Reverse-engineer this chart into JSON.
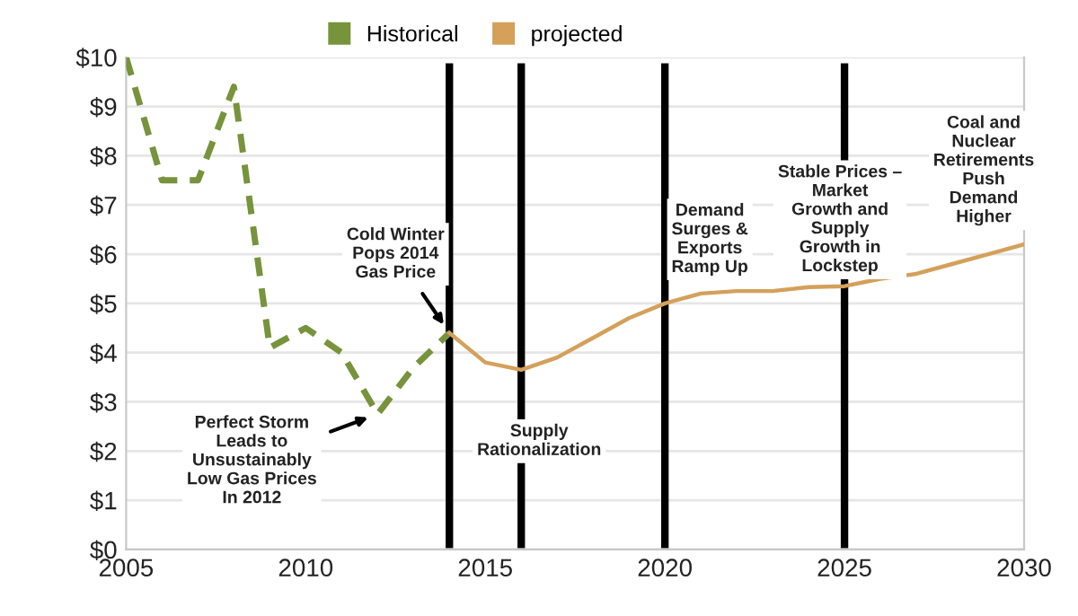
{
  "chart_data": {
    "type": "line",
    "x": [
      2005,
      2006,
      2007,
      2008,
      2009,
      2010,
      2011,
      2012,
      2013,
      2014,
      2015,
      2016,
      2017,
      2018,
      2019,
      2020,
      2021,
      2022,
      2023,
      2024,
      2025,
      2026,
      2027,
      2028,
      2029,
      2030
    ],
    "series": [
      {
        "name": "Historical",
        "color": "#77933c",
        "line_style": "dashed",
        "values": [
          10,
          7.5,
          7.5,
          9.4,
          4.1,
          4.5,
          4.0,
          2.75,
          3.7,
          4.4,
          null,
          null,
          null,
          null,
          null,
          null,
          null,
          null,
          null,
          null,
          null,
          null,
          null,
          null,
          null,
          null
        ]
      },
      {
        "name": "projected",
        "color": "#d4a05a",
        "line_style": "solid",
        "values": [
          null,
          null,
          null,
          null,
          null,
          null,
          null,
          null,
          null,
          4.4,
          3.8,
          3.65,
          3.9,
          4.3,
          4.7,
          5.0,
          5.2,
          5.25,
          5.25,
          5.33,
          5.35,
          5.5,
          5.6,
          5.8,
          6.0,
          6.2
        ]
      }
    ],
    "xlim": [
      2005,
      2030
    ],
    "xticks": [
      2005,
      2010,
      2015,
      2020,
      2025,
      2030
    ],
    "ylim": [
      0,
      10
    ],
    "yticks": [
      {
        "value": 0,
        "label": "$0"
      },
      {
        "value": 1,
        "label": "$1"
      },
      {
        "value": 2,
        "label": "$2"
      },
      {
        "value": 3,
        "label": "$3"
      },
      {
        "value": 4,
        "label": "$4"
      },
      {
        "value": 5,
        "label": "$5"
      },
      {
        "value": 6,
        "label": "$6"
      },
      {
        "value": 7,
        "label": "$7"
      },
      {
        "value": 8,
        "label": "$8"
      },
      {
        "value": 9,
        "label": "$9"
      },
      {
        "value": 10,
        "label": "$10"
      }
    ],
    "grid": "y",
    "legend": "top left",
    "marker": "none",
    "ref_lines": [
      {
        "axis": "x",
        "value": 2014,
        "color": "#000000"
      },
      {
        "axis": "x",
        "value": 2016,
        "color": "#000000"
      },
      {
        "axis": "x",
        "value": 2020,
        "color": "#000000"
      },
      {
        "axis": "x",
        "value": 2025,
        "color": "#000000"
      }
    ],
    "annotations": [
      {
        "text": "Cold Winter\nPops 2014\nGas Price",
        "x": 2014,
        "y": 4.4
      },
      {
        "text": "Perfect Storm\nLeads to\nUnsustainably\nLow Gas Prices\nIn 2012",
        "x": 2012,
        "y": 2.75
      },
      "Supply\nRationalization",
      "Demand\nSurges &\nExports\nRamp Up",
      "Stable Prices –\nMarket\nGrowth and\nSupply\nGrowth in\nLockstep",
      "Coal and\nNuclear\nRetirements\nPush\nDemand\nHigher"
    ]
  }
}
